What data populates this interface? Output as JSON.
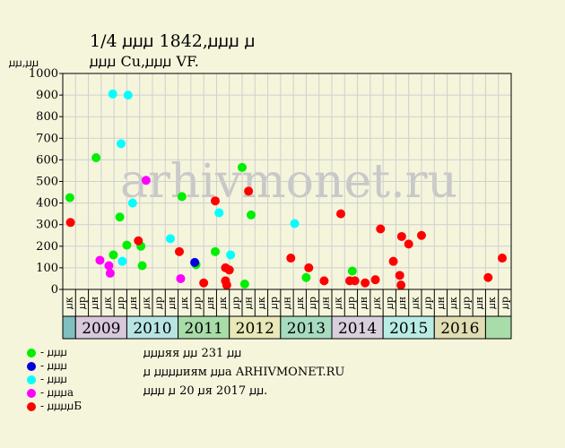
{
  "title": "1/4 ꙡꙡꙡ 1842,ꙡꙡꙡ ꙡ",
  "subtitle": "ꙡꙡꙡ Cu,ꙡꙡꙡ VF.",
  "ylabel": "ꙡꙡ,ꙡꙡ",
  "watermark": "arhivmonet.ru",
  "notes": [
    "ꙡꙡꙡяя ꙡꙡ 231 ꙡꙡ",
    "ꙡ ꙡꙡꙡꙡиям ꙡꙡа ARHIVMONET.RU",
    "ꙡꙡꙡ ꙡ 20 ꙡя 2017 ꙡꙡ."
  ],
  "legend": [
    {
      "label": "- ꙡꙡꙡ",
      "color": "#00ee00"
    },
    {
      "label": "- ꙡꙡꙡ",
      "color": "#0000dd"
    },
    {
      "label": "- ꙡꙡꙡ",
      "color": "#00ffff"
    },
    {
      "label": "- ꙡꙡꙡа",
      "color": "#ff00ff"
    },
    {
      "label": "- ꙡꙡꙡꙡБ",
      "color": "#ff0000"
    }
  ],
  "chart_data": {
    "type": "scatter",
    "ylim": [
      0,
      1000
    ],
    "yticks": [
      0,
      100,
      200,
      300,
      400,
      500,
      600,
      700,
      800,
      900,
      1000
    ],
    "grid": true,
    "months": [
      "ꙡк",
      "ꙡр",
      "ꙡн",
      "ꙡк",
      "ꙡр",
      "ꙡн",
      "ꙡк",
      "ꙡр",
      "ꙡн",
      "ꙡк",
      "ꙡр",
      "ꙡн",
      "ꙡк",
      "ꙡр",
      "ꙡн",
      "ꙡк",
      "ꙡр",
      "ꙡн",
      "ꙡк",
      "ꙡр",
      "ꙡн",
      "ꙡк",
      "ꙡр",
      "ꙡн",
      "ꙡк",
      "ꙡр",
      "ꙡн",
      "ꙡк",
      "ꙡр",
      "ꙡн",
      "ꙡк",
      "ꙡр",
      "ꙡн",
      "ꙡк",
      "ꙡр"
    ],
    "years": [
      {
        "label": "",
        "start": 0,
        "span": 1,
        "color": "#7fbfbf"
      },
      {
        "label": "2009",
        "start": 1,
        "span": 4,
        "color": "#d8c8dc"
      },
      {
        "label": "2010",
        "start": 5,
        "span": 4,
        "color": "#b8e4e4"
      },
      {
        "label": "2011",
        "start": 9,
        "span": 4,
        "color": "#a8dca8"
      },
      {
        "label": "2012",
        "start": 13,
        "span": 4,
        "color": "#e8e8b8"
      },
      {
        "label": "2013",
        "start": 17,
        "span": 4,
        "color": "#a8dcc0"
      },
      {
        "label": "2014",
        "start": 21,
        "span": 4,
        "color": "#d8d0dc"
      },
      {
        "label": "2015",
        "start": 25,
        "span": 4,
        "color": "#b8ece4"
      },
      {
        "label": "2016",
        "start": 29,
        "span": 4,
        "color": "#e0dcb4"
      },
      {
        "label": "",
        "start": 33,
        "span": 2,
        "color": "#a8dca8"
      }
    ],
    "series": [
      {
        "color": "#00ee00",
        "points": [
          [
            0.05,
            425
          ],
          [
            2.1,
            610
          ],
          [
            3.45,
            160
          ],
          [
            3.95,
            335
          ],
          [
            4.5,
            205
          ],
          [
            5.6,
            200
          ],
          [
            5.7,
            110
          ],
          [
            8.8,
            430
          ],
          [
            9.9,
            115
          ],
          [
            11.4,
            175
          ],
          [
            13.5,
            565
          ],
          [
            13.7,
            25
          ],
          [
            14.2,
            345
          ],
          [
            18.5,
            55
          ],
          [
            22.1,
            85
          ]
        ]
      },
      {
        "color": "#0000dd",
        "points": [
          [
            9.8,
            125
          ]
        ]
      },
      {
        "color": "#00ffff",
        "points": [
          [
            3.4,
            905
          ],
          [
            4.05,
            675
          ],
          [
            4.15,
            130
          ],
          [
            4.6,
            900
          ],
          [
            4.95,
            400
          ],
          [
            7.9,
            235
          ],
          [
            11.7,
            355
          ],
          [
            12.6,
            160
          ],
          [
            17.6,
            305
          ]
        ]
      },
      {
        "color": "#ff00ff",
        "points": [
          [
            2.4,
            135
          ],
          [
            3.1,
            110
          ],
          [
            3.2,
            75
          ],
          [
            6.0,
            505
          ],
          [
            8.7,
            50
          ]
        ]
      },
      {
        "color": "#ff0000",
        "points": [
          [
            0.1,
            310
          ],
          [
            5.4,
            225
          ],
          [
            8.6,
            175
          ],
          [
            10.5,
            30
          ],
          [
            11.4,
            410
          ],
          [
            12.2,
            100
          ],
          [
            12.2,
            40
          ],
          [
            12.3,
            20
          ],
          [
            12.5,
            90
          ],
          [
            14.0,
            455
          ],
          [
            17.3,
            145
          ],
          [
            18.7,
            100
          ],
          [
            19.9,
            40
          ],
          [
            21.2,
            350
          ],
          [
            21.9,
            40
          ],
          [
            22.3,
            40
          ],
          [
            23.1,
            30
          ],
          [
            23.9,
            45
          ],
          [
            24.3,
            280
          ],
          [
            25.3,
            130
          ],
          [
            25.8,
            65
          ],
          [
            25.9,
            20
          ],
          [
            25.95,
            245
          ],
          [
            26.5,
            210
          ],
          [
            27.5,
            250
          ],
          [
            32.7,
            55
          ],
          [
            33.8,
            145
          ]
        ]
      }
    ]
  }
}
